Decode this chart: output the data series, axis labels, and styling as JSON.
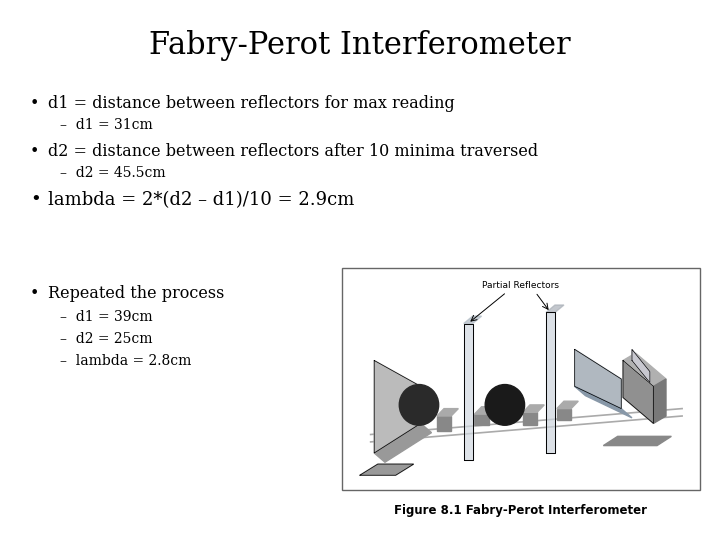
{
  "title": "Fabry-Perot Interferometer",
  "title_fontsize": 22,
  "background_color": "#ffffff",
  "text_color": "#000000",
  "bullet1": "d1 = distance between reflectors for max reading",
  "sub1": "d1 = 31cm",
  "bullet2": "d2 = distance between reflectors after 10 minima traversed",
  "sub2": "d2 = 45.5cm",
  "bullet3": "lambda = 2*(d2 – d1)/10 = 2.9cm",
  "bullet4": "Repeated the process",
  "sub4a": "d1 = 39cm",
  "sub4b": "d2 = 25cm",
  "sub4c": "lambda = 2.8cm",
  "fig_caption": "Figure 8.1 Fabry-Perot Interferometer",
  "bullet_fontsize": 11.5,
  "sub_fontsize": 10,
  "bullet3_fontsize": 13,
  "bullet4_fontsize": 11.5
}
